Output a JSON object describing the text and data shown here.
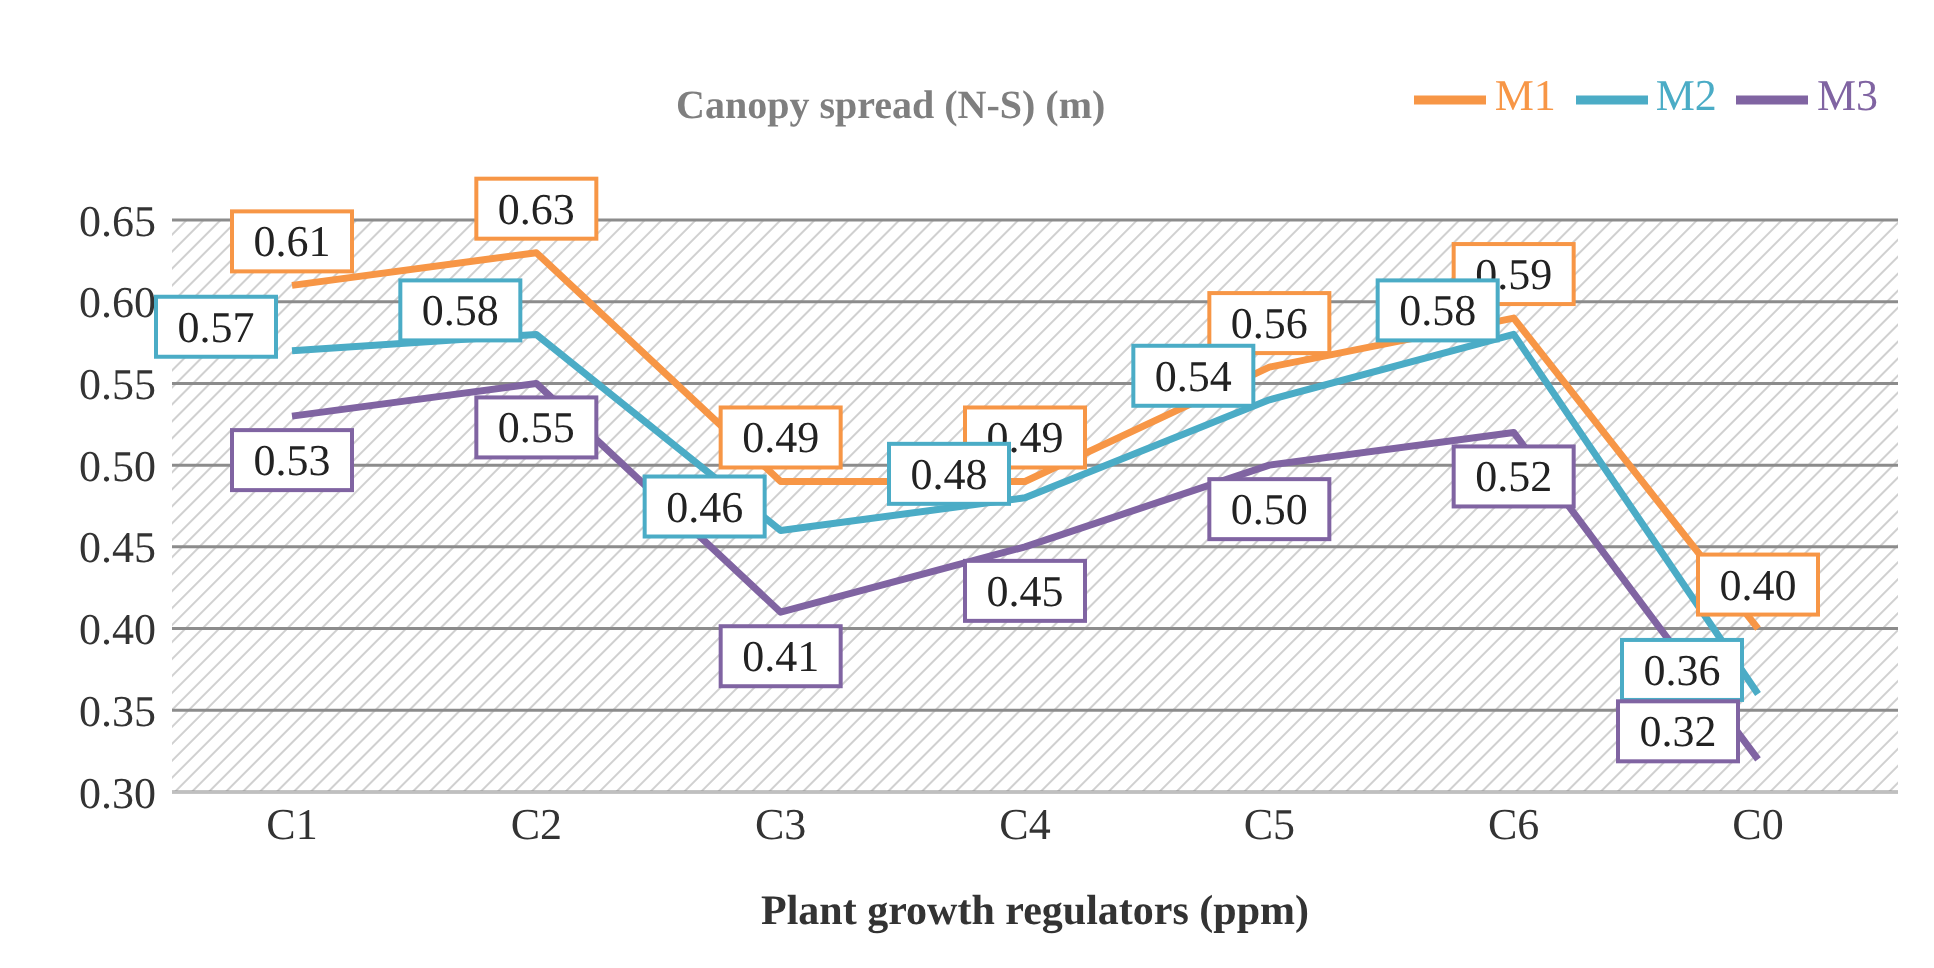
{
  "chart_data": {
    "type": "line",
    "title": "Canopy spread (N-S) (m)",
    "xlabel": "Plant growth regulators (ppm)",
    "categories": [
      "C1",
      "C2",
      "C3",
      "C4",
      "C5",
      "C6",
      "C0"
    ],
    "series": [
      {
        "name": "M1",
        "color": "#f79646",
        "values": [
          0.61,
          0.63,
          0.49,
          0.49,
          0.56,
          0.59,
          0.4
        ],
        "value_labels": [
          "0.61",
          "0.63",
          "0.49",
          "0.49",
          "0.56",
          "0.59",
          "0.40"
        ]
      },
      {
        "name": "M2",
        "color": "#4bacc6",
        "values": [
          0.57,
          0.58,
          0.46,
          0.48,
          0.54,
          0.58,
          0.36
        ],
        "value_labels": [
          "0.57",
          "0.58",
          "0.46",
          "0.48",
          "0.54",
          "0.58",
          "0.36"
        ]
      },
      {
        "name": "M3",
        "color": "#8064a2",
        "values": [
          0.53,
          0.55,
          0.41,
          0.45,
          0.5,
          0.52,
          0.32
        ],
        "value_labels": [
          "0.53",
          "0.55",
          "0.41",
          "0.45",
          "0.50",
          "0.52",
          "0.32"
        ]
      }
    ],
    "ylim": [
      0.3,
      0.65
    ],
    "yticks": [
      {
        "value": 0.3,
        "label": "0.30"
      },
      {
        "value": 0.35,
        "label": "0.35"
      },
      {
        "value": 0.4,
        "label": "0.40"
      },
      {
        "value": 0.45,
        "label": "0.45"
      },
      {
        "value": 0.5,
        "label": "0.50"
      },
      {
        "value": 0.55,
        "label": "0.55"
      },
      {
        "value": 0.6,
        "label": "0.60"
      },
      {
        "value": 0.65,
        "label": "0.65"
      }
    ],
    "grid": "y",
    "legend": "top right",
    "marker": "none",
    "line_style": "solid"
  }
}
